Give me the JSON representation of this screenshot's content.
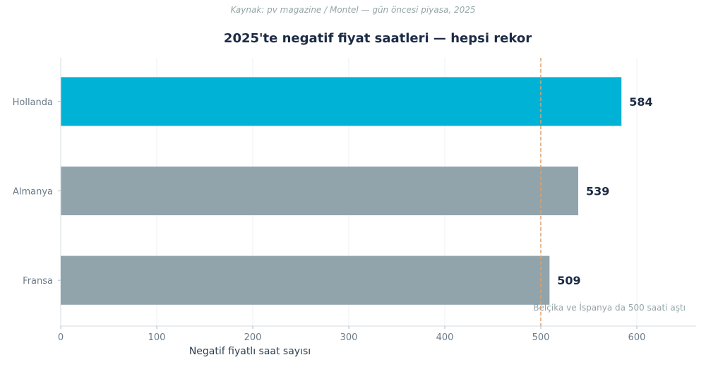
{
  "source_note": "Kaynak: pv magazine / Montel — gün öncesi piyasa, 2025",
  "chart_data": {
    "type": "bar",
    "orientation": "horizontal",
    "title": "2025'te negatif fiyat saatleri — hepsi rekor",
    "xlabel": "Negatif fiyatlı saat sayısı",
    "ylabel": "",
    "categories": [
      "Hollanda",
      "Almanya",
      "Fransa"
    ],
    "values": [
      584,
      539,
      509
    ],
    "bar_colors": [
      "#00b3d6",
      "#91a4ac",
      "#91a4ac"
    ],
    "xlim": [
      0,
      660
    ],
    "xticks": [
      0,
      100,
      200,
      300,
      400,
      500,
      600
    ],
    "grid": true,
    "reference_line": {
      "value": 500,
      "color": "#e0a06a",
      "style": "dashed"
    },
    "annotation": "Belçika ve İspanya da 500 saati aştı"
  }
}
